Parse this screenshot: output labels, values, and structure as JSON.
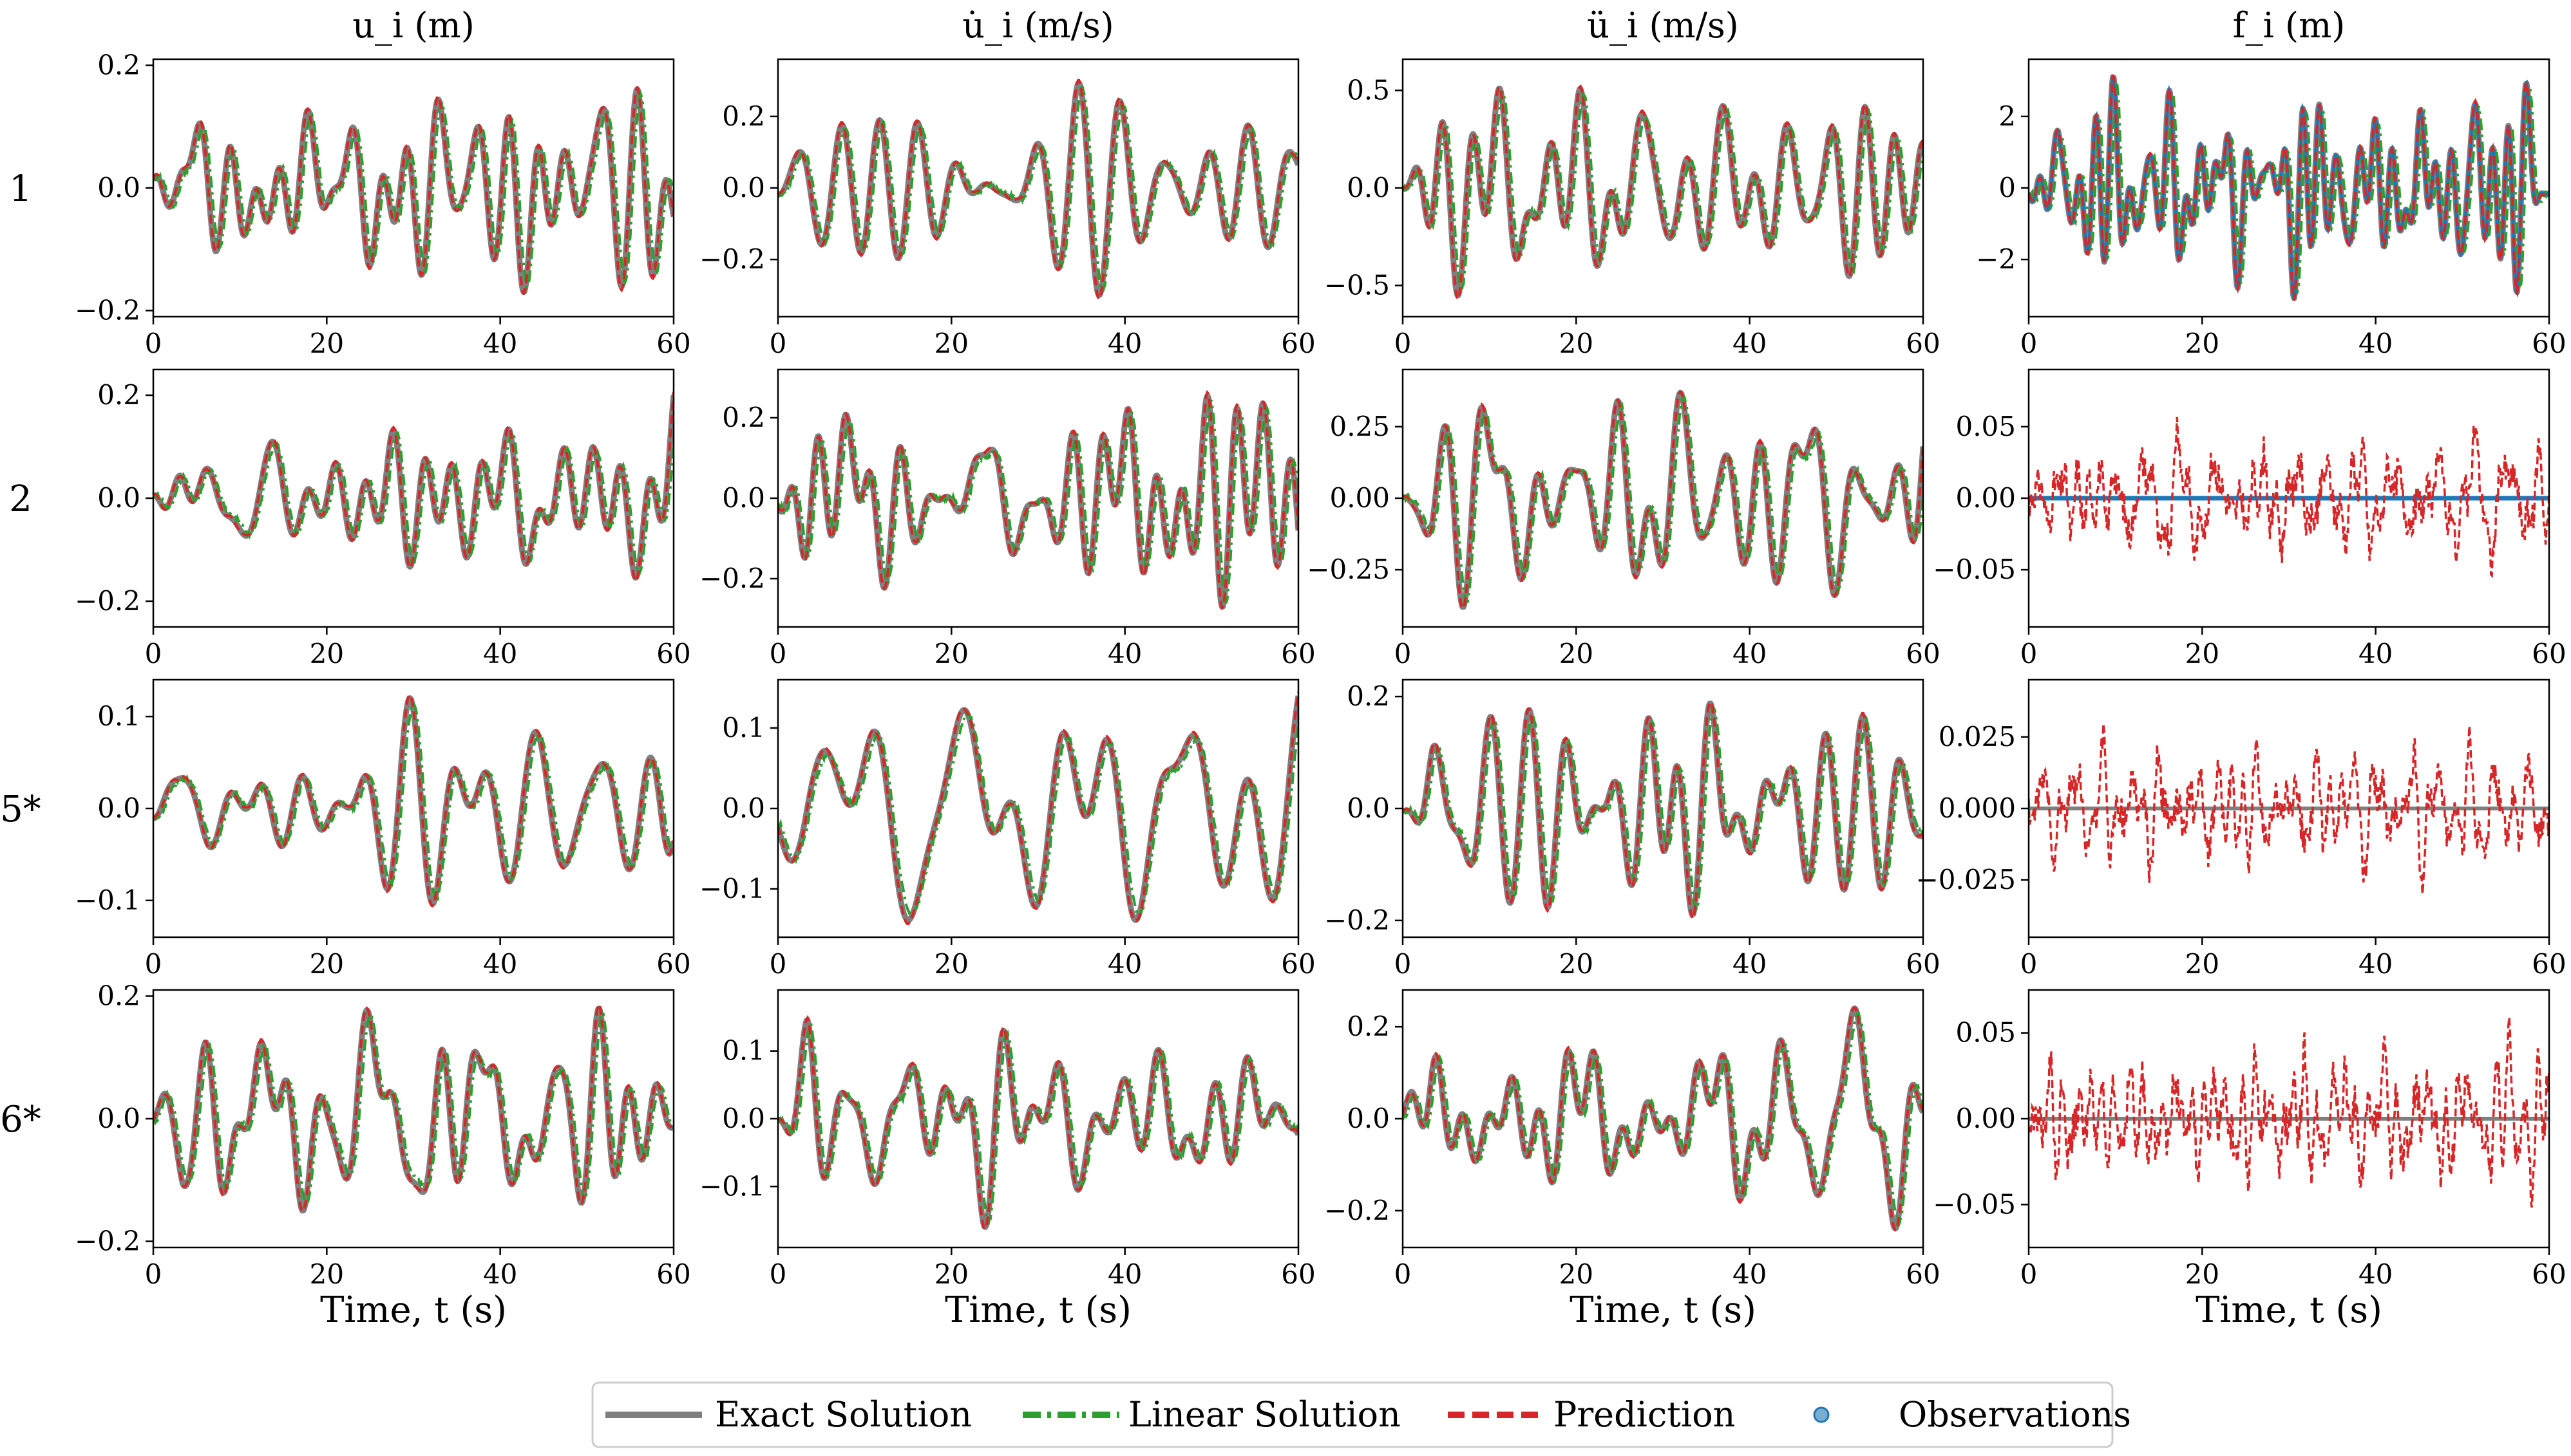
{
  "colors": {
    "exact": "#7f7f7f",
    "linear": "#2ca02c",
    "prediction": "#d62728",
    "observations": "#1f77b4"
  },
  "legend": {
    "items": [
      {
        "label": "Exact Solution",
        "style": "solid",
        "color": "#7f7f7f"
      },
      {
        "label": "Linear Solution",
        "style": "dashdot",
        "color": "#2ca02c"
      },
      {
        "label": "Prediction",
        "style": "dashed",
        "color": "#d62728"
      },
      {
        "label": "Observations",
        "style": "marker",
        "color": "#1f77b4"
      }
    ]
  },
  "column_titles": [
    "u_i (m)",
    "u̇_i (m/s)",
    "ü_i (m/s)",
    "f_i (m)"
  ],
  "row_labels": [
    "1",
    "2",
    "5*",
    "6*"
  ],
  "xlabel": "Time, t (s)",
  "chart_data": {
    "type": "line",
    "layout": "4x4 grid of subplots",
    "xlim": [
      0,
      60
    ],
    "xticks": [
      0,
      20,
      40,
      60
    ],
    "series_names": [
      "Exact Solution",
      "Linear Solution",
      "Prediction",
      "Observations"
    ],
    "panels": [
      {
        "row": "1",
        "col": "u_i (m)",
        "ylim": [
          -0.21,
          0.21
        ],
        "yticks": [
          -0.2,
          0.0,
          0.2
        ],
        "ytick_labels": [
          "−0.2",
          "0.0",
          "0.2"
        ],
        "amplitude": 0.17,
        "seed": 1,
        "kind": "motion"
      },
      {
        "row": "1",
        "col": "u̇_i (m/s)",
        "ylim": [
          -0.36,
          0.36
        ],
        "yticks": [
          -0.2,
          0.0,
          0.2
        ],
        "ytick_labels": [
          "−0.2",
          "0.0",
          "0.2"
        ],
        "amplitude": 0.3,
        "seed": 2,
        "kind": "motion"
      },
      {
        "row": "1",
        "col": "ü_i (m/s)",
        "ylim": [
          -0.66,
          0.66
        ],
        "yticks": [
          -0.5,
          0.0,
          0.5
        ],
        "ytick_labels": [
          "−0.5",
          "0.0",
          "0.5"
        ],
        "amplitude": 0.55,
        "seed": 3,
        "kind": "motion"
      },
      {
        "row": "1",
        "col": "f_i (m)",
        "ylim": [
          -3.6,
          3.6
        ],
        "yticks": [
          -2,
          0,
          2
        ],
        "ytick_labels": [
          "−2",
          "0",
          "2"
        ],
        "amplitude": 3.1,
        "seed": 4,
        "kind": "force"
      },
      {
        "row": "2",
        "col": "u_i (m)",
        "ylim": [
          -0.25,
          0.25
        ],
        "yticks": [
          -0.2,
          0.0,
          0.2
        ],
        "ytick_labels": [
          "−0.2",
          "0.0",
          "0.2"
        ],
        "amplitude": 0.2,
        "seed": 5,
        "kind": "motion"
      },
      {
        "row": "2",
        "col": "u̇_i (m/s)",
        "ylim": [
          -0.32,
          0.32
        ],
        "yticks": [
          -0.2,
          0.0,
          0.2
        ],
        "ytick_labels": [
          "−0.2",
          "0.0",
          "0.2"
        ],
        "amplitude": 0.27,
        "seed": 6,
        "kind": "motion"
      },
      {
        "row": "2",
        "col": "ü_i (m/s)",
        "ylim": [
          -0.45,
          0.45
        ],
        "yticks": [
          -0.25,
          0.0,
          0.25
        ],
        "ytick_labels": [
          "−0.25",
          "0.00",
          "0.25"
        ],
        "amplitude": 0.38,
        "seed": 7,
        "kind": "motion"
      },
      {
        "row": "2",
        "col": "f_i (m)",
        "ylim": [
          -0.09,
          0.09
        ],
        "yticks": [
          -0.05,
          0.0,
          0.05
        ],
        "ytick_labels": [
          "−0.05",
          "0.00",
          "0.05"
        ],
        "amplitude": 0.07,
        "seed": 8,
        "kind": "observed_zero"
      },
      {
        "row": "5*",
        "col": "u_i (m)",
        "ylim": [
          -0.14,
          0.14
        ],
        "yticks": [
          -0.1,
          0.0,
          0.1
        ],
        "ytick_labels": [
          "−0.1",
          "0.0",
          "0.1"
        ],
        "amplitude": 0.12,
        "seed": 9,
        "kind": "motion"
      },
      {
        "row": "5*",
        "col": "u̇_i (m/s)",
        "ylim": [
          -0.16,
          0.16
        ],
        "yticks": [
          -0.1,
          0.0,
          0.1
        ],
        "ytick_labels": [
          "−0.1",
          "0.0",
          "0.1"
        ],
        "amplitude": 0.14,
        "seed": 10,
        "kind": "motion"
      },
      {
        "row": "5*",
        "col": "ü_i (m/s)",
        "ylim": [
          -0.23,
          0.23
        ],
        "yticks": [
          -0.2,
          0.0,
          0.2
        ],
        "ytick_labels": [
          "−0.2",
          "0.0",
          "0.2"
        ],
        "amplitude": 0.19,
        "seed": 11,
        "kind": "motion"
      },
      {
        "row": "5*",
        "col": "f_i (m)",
        "ylim": [
          -0.045,
          0.045
        ],
        "yticks": [
          -0.025,
          0.0,
          0.025
        ],
        "ytick_labels": [
          "−0.025",
          "0.000",
          "0.025"
        ],
        "amplitude": 0.035,
        "seed": 12,
        "kind": "unobserved_zero"
      },
      {
        "row": "6*",
        "col": "u_i (m)",
        "ylim": [
          -0.21,
          0.21
        ],
        "yticks": [
          -0.2,
          0.0,
          0.2
        ],
        "ytick_labels": [
          "−0.2",
          "0.0",
          "0.2"
        ],
        "amplitude": 0.18,
        "seed": 13,
        "kind": "motion"
      },
      {
        "row": "6*",
        "col": "u̇_i (m/s)",
        "ylim": [
          -0.19,
          0.19
        ],
        "yticks": [
          -0.1,
          0.0,
          0.1
        ],
        "ytick_labels": [
          "−0.1",
          "0.0",
          "0.1"
        ],
        "amplitude": 0.16,
        "seed": 14,
        "kind": "motion"
      },
      {
        "row": "6*",
        "col": "ü_i (m/s)",
        "ylim": [
          -0.28,
          0.28
        ],
        "yticks": [
          -0.2,
          0.0,
          0.2
        ],
        "ytick_labels": [
          "−0.2",
          "0.0",
          "0.2"
        ],
        "amplitude": 0.24,
        "seed": 15,
        "kind": "motion"
      },
      {
        "row": "6*",
        "col": "f_i (m)",
        "ylim": [
          -0.075,
          0.075
        ],
        "yticks": [
          -0.05,
          0.0,
          0.05
        ],
        "ytick_labels": [
          "−0.05",
          "0.00",
          "0.05"
        ],
        "amplitude": 0.065,
        "seed": 16,
        "kind": "unobserved_zero"
      }
    ]
  }
}
